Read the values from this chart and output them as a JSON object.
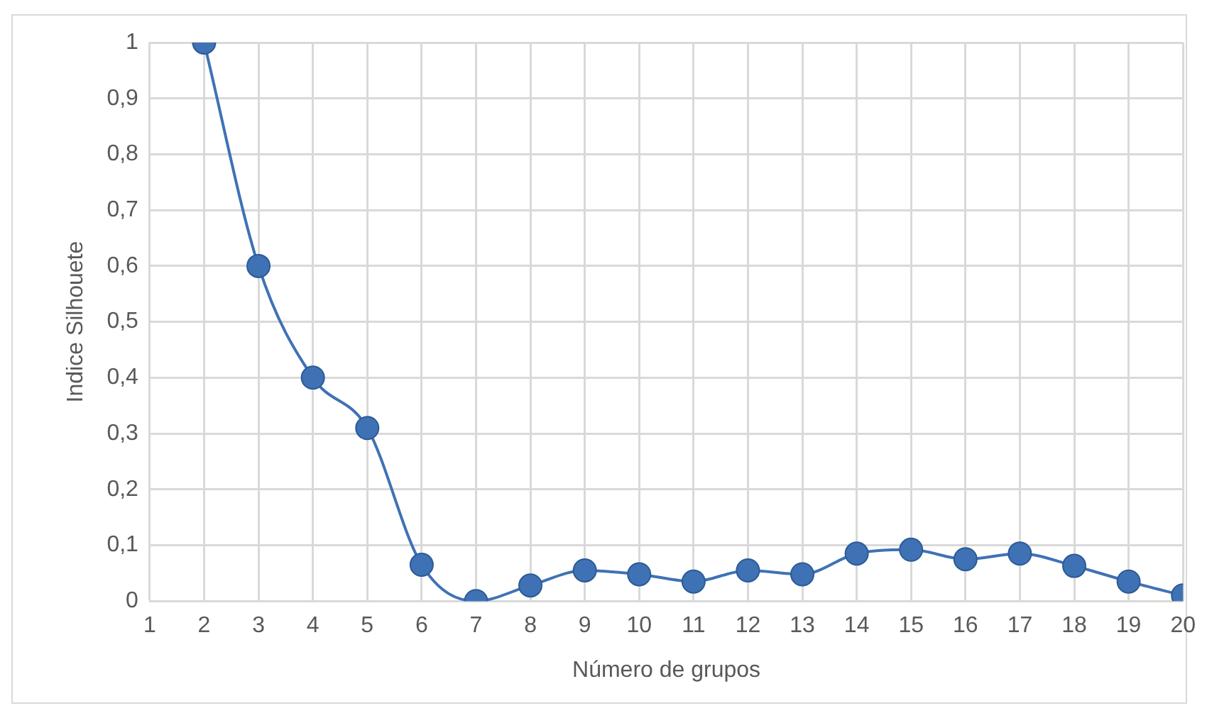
{
  "chart_data": {
    "type": "line",
    "xlabel": "Número de grupos",
    "ylabel": "Indice Silhouete",
    "x": [
      2,
      3,
      4,
      5,
      6,
      7,
      8,
      9,
      10,
      11,
      12,
      13,
      14,
      15,
      16,
      17,
      18,
      19,
      20
    ],
    "series": [
      {
        "color": "#3f72b5",
        "values": [
          1,
          0.6,
          0.4,
          0.31,
          0.065,
          0,
          0.028,
          0.055,
          0.048,
          0.035,
          0.055,
          0.048,
          0.085,
          0.092,
          0.075,
          0.085,
          0.063,
          0.035,
          0.01
        ]
      }
    ],
    "xlim": [
      1,
      20
    ],
    "xticks": [
      1,
      2,
      3,
      4,
      5,
      6,
      7,
      8,
      9,
      10,
      11,
      12,
      13,
      14,
      15,
      16,
      17,
      18,
      19,
      20
    ],
    "ylim": [
      0,
      1
    ],
    "yticks": [
      0,
      {
        "value": 0.1,
        "label": "0,1"
      },
      {
        "value": 0.2,
        "label": "0,2"
      },
      {
        "value": 0.3,
        "label": "0,3"
      },
      {
        "value": 0.4,
        "label": "0,4"
      },
      {
        "value": 0.5,
        "label": "0,5"
      },
      {
        "value": 0.6,
        "label": "0,6"
      },
      {
        "value": 0.7,
        "label": "0,7"
      },
      {
        "value": 0.8,
        "label": "0,8"
      },
      {
        "value": 0.9,
        "label": "0,9"
      },
      1
    ],
    "grid": true,
    "legend": false,
    "marker": "circle",
    "line_style": "solid"
  }
}
